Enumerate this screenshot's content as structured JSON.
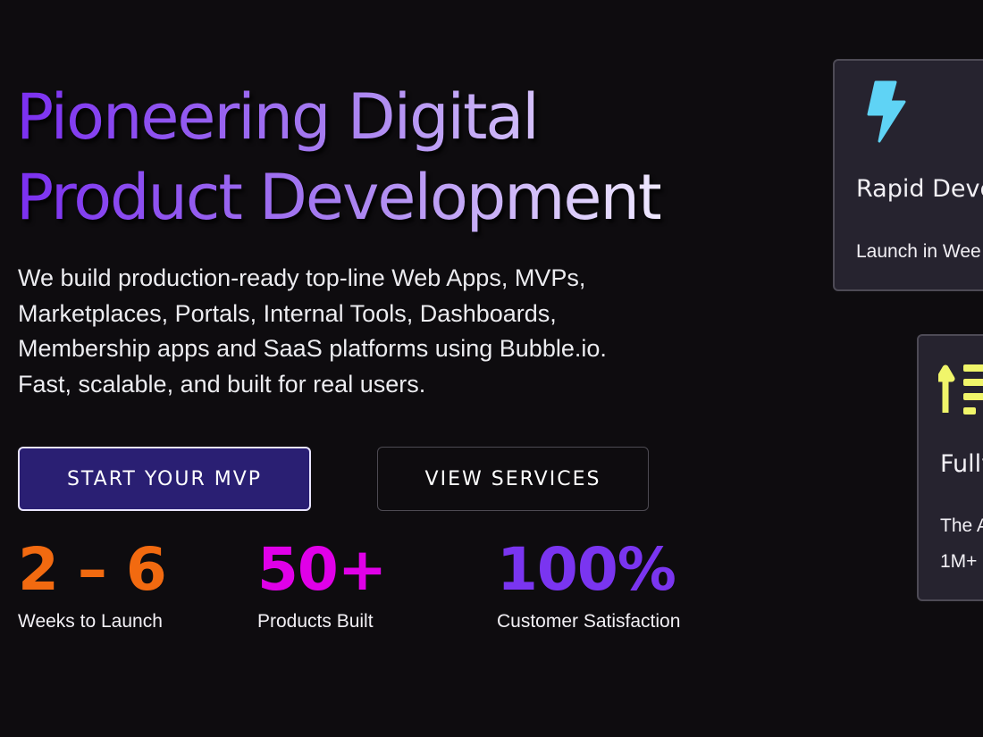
{
  "hero": {
    "title_line1": "Pioneering Digital",
    "title_line2": "Product Development",
    "description": "We build production-ready top-line Web Apps, MVPs, Marketplaces, Portals, Internal Tools, Dashboards, Membership apps and SaaS platforms using Bubble.io. Fast, scalable, and built for real users.",
    "primary_button": "START YOUR MVP",
    "secondary_button": "VIEW SERVICES"
  },
  "stats": [
    {
      "value": "2 – 6",
      "label": "Weeks to Launch",
      "color": "#f26a10"
    },
    {
      "value": "50+",
      "label": "Products Built",
      "color": "#e000e8"
    },
    {
      "value": "100%",
      "label": "Customer Satisfaction",
      "color": "#7a35f0"
    }
  ],
  "cards": [
    {
      "icon": "lightning-icon",
      "icon_color": "#5fd3f5",
      "title": "Rapid Deve",
      "lines": [
        "Launch in Wee"
      ]
    },
    {
      "icon": "sort-ascending-icon",
      "icon_color": "#f0f56a",
      "title": "Fully",
      "lines": [
        "The A",
        "1M+"
      ]
    }
  ]
}
